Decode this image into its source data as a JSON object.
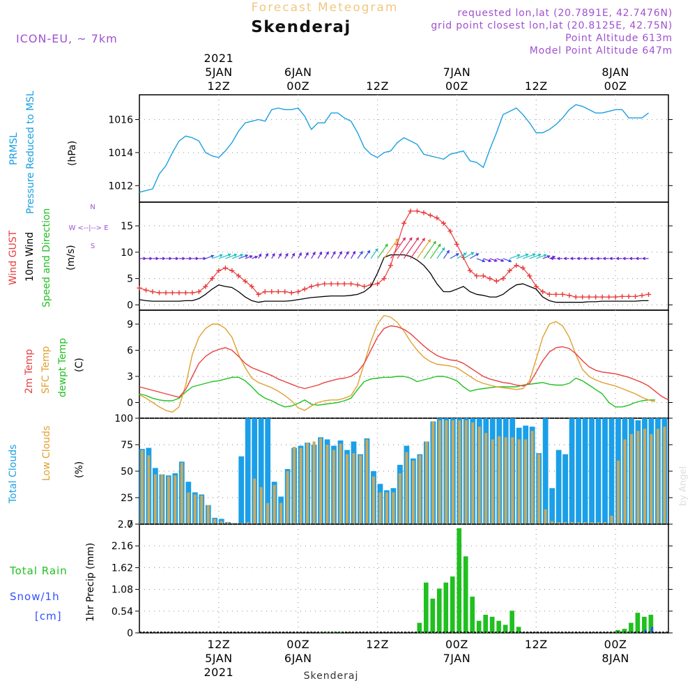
{
  "header": {
    "product": "Forecast Meteogram",
    "location": "Skenderaj",
    "model": "ICON-EU, ~ 7km",
    "requested": "requested lon,lat (20.7891E, 42.7476N)",
    "gridpoint": "grid point closest lon,lat (20.8125E, 42.75N)",
    "point_altitude": "Point Altitude 613m",
    "model_altitude": "Model Point Altitude 647m",
    "footer_location": "Skenderaj",
    "watermark": "by Angel"
  },
  "colors": {
    "pressure": "#1a9fe0",
    "gust": "#e83a3a",
    "wind": "#000000",
    "temp2m": "#e84040",
    "sfc": "#e0a030",
    "dewpt": "#20c020",
    "total_clouds": "#1a9fe8",
    "low_clouds": "#c8aa60",
    "rain": "#20c020",
    "snow": "#3050ff",
    "label_purple": "#a050d0",
    "title_orange": "#f0c880"
  },
  "time_axis": {
    "top_ticks": [
      {
        "t": 12,
        "lines": [
          "2021",
          "5JAN",
          "12Z"
        ]
      },
      {
        "t": 24,
        "lines": [
          "6JAN",
          "00Z"
        ]
      },
      {
        "t": 36,
        "lines": [
          "12Z"
        ]
      },
      {
        "t": 48,
        "lines": [
          "7JAN",
          "00Z"
        ]
      },
      {
        "t": 60,
        "lines": [
          "12Z"
        ]
      },
      {
        "t": 72,
        "lines": [
          "8JAN",
          "00Z"
        ]
      }
    ],
    "bottom_ticks": [
      {
        "t": 12,
        "lines": [
          "12Z",
          "5JAN",
          "2021"
        ]
      },
      {
        "t": 24,
        "lines": [
          "00Z",
          "6JAN"
        ]
      },
      {
        "t": 36,
        "lines": [
          "12Z"
        ]
      },
      {
        "t": 48,
        "lines": [
          "00Z",
          "7JAN"
        ]
      },
      {
        "t": 60,
        "lines": [
          "12Z"
        ]
      },
      {
        "t": 72,
        "lines": [
          "00Z",
          "8JAN"
        ]
      }
    ]
  },
  "panel_labels": {
    "pressure": {
      "name1": "PRMSL",
      "name2": "Pressure Reduced to MSL",
      "unit": "(hPa)"
    },
    "wind": {
      "gust": "Wind GUST",
      "wind10": "10m Wind",
      "dir": "Speed and Direction",
      "unit": "(m/s)",
      "compass": [
        "N",
        "W <--|--> E",
        "S"
      ]
    },
    "temp": {
      "t2m": "2m Temp",
      "sfc": "SFC Temp",
      "dew": "dewpt Temp",
      "unit": "(C)"
    },
    "clouds": {
      "total": "Total Clouds",
      "low": "Low Clouds",
      "unit": "(%)"
    },
    "precip": {
      "rain": "Total  Rain",
      "snow": "Snow/1h",
      "snow_unit": "[cm]",
      "axis": "1hr Precip (mm)"
    }
  },
  "chart_data": [
    {
      "type": "line",
      "panel": "pressure",
      "x_start_hour": 0,
      "x_step_hours": 1,
      "ylim": [
        1011,
        1017.5
      ],
      "yticks": [
        1012,
        1014,
        1016
      ],
      "series": [
        {
          "name": "PRMSL",
          "values": [
            1011.6,
            1011.7,
            1011.8,
            1012.7,
            1013.2,
            1014.0,
            1014.7,
            1015.0,
            1014.9,
            1014.7,
            1014.0,
            1013.8,
            1013.7,
            1014.1,
            1014.6,
            1015.3,
            1015.8,
            1015.9,
            1016.0,
            1015.9,
            1016.6,
            1016.7,
            1016.6,
            1016.6,
            1016.7,
            1016.2,
            1015.4,
            1015.8,
            1015.8,
            1016.4,
            1016.4,
            1016.1,
            1015.9,
            1015.2,
            1014.3,
            1013.9,
            1013.7,
            1014.0,
            1014.1,
            1014.6,
            1014.9,
            1014.7,
            1014.5,
            1013.9,
            1013.8,
            1013.7,
            1013.6,
            1013.9,
            1014.0,
            1014.1,
            1013.5,
            1013.4,
            1013.1,
            1014.2,
            1015.2,
            1016.3,
            1016.5,
            1016.7,
            1016.3,
            1015.8,
            1015.2,
            1015.2,
            1015.4,
            1015.7,
            1016.1,
            1016.6,
            1016.9,
            1016.8,
            1016.6,
            1016.4,
            1016.4,
            1016.5,
            1016.6,
            1016.6,
            1016.1,
            1016.1,
            1016.1,
            1016.4
          ]
        }
      ]
    },
    {
      "type": "line",
      "panel": "wind",
      "x_start_hour": 0,
      "x_step_hours": 1,
      "ylim": [
        -1,
        19.5
      ],
      "yticks": [
        0,
        5,
        10,
        15
      ],
      "series": [
        {
          "name": "Wind GUST",
          "values": [
            3.2,
            2.8,
            2.5,
            2.3,
            2.3,
            2.3,
            2.3,
            2.3,
            2.3,
            2.5,
            3.5,
            5.0,
            6.5,
            7.0,
            6.5,
            5.5,
            4.5,
            3.5,
            2.0,
            2.5,
            2.5,
            2.5,
            2.5,
            2.3,
            2.5,
            3.0,
            3.5,
            3.8,
            4.0,
            4.0,
            4.0,
            4.0,
            4.0,
            3.8,
            3.5,
            3.8,
            4.0,
            5.0,
            7.5,
            11.5,
            15.5,
            17.8,
            17.8,
            17.5,
            17.0,
            16.5,
            15.5,
            14.0,
            11.5,
            9.0,
            6.5,
            5.5,
            5.5,
            5.0,
            4.5,
            5.0,
            6.5,
            7.5,
            7.0,
            5.5,
            3.5,
            2.5,
            2.0,
            2.0,
            2.0,
            1.8,
            1.5,
            1.5,
            1.5,
            1.5,
            1.5,
            1.5,
            1.5,
            1.6,
            1.6,
            1.6,
            1.8,
            2.0
          ]
        },
        {
          "name": "10m Wind",
          "values": [
            1.0,
            0.8,
            0.7,
            0.7,
            0.7,
            0.7,
            0.7,
            0.8,
            0.8,
            1.2,
            2.0,
            3.0,
            3.8,
            3.5,
            3.3,
            2.5,
            1.5,
            0.8,
            0.5,
            0.7,
            0.7,
            0.7,
            0.7,
            0.8,
            1.0,
            1.2,
            1.4,
            1.5,
            1.6,
            1.7,
            1.7,
            1.7,
            1.8,
            2.0,
            2.5,
            3.5,
            6.0,
            9.0,
            9.5,
            9.5,
            9.5,
            9.2,
            8.5,
            7.5,
            6.0,
            4.0,
            2.5,
            2.5,
            3.0,
            3.5,
            2.5,
            2.0,
            1.8,
            1.5,
            1.5,
            2.0,
            3.0,
            3.8,
            4.0,
            3.5,
            3.0,
            1.5,
            0.8,
            0.5,
            0.5,
            0.5,
            0.5,
            0.5,
            0.6,
            0.6,
            0.7,
            0.7,
            0.7,
            0.7,
            0.7,
            0.7,
            0.8,
            0.8
          ]
        }
      ]
    },
    {
      "type": "line",
      "panel": "temperature",
      "x_start_hour": 0,
      "x_step_hours": 1,
      "ylim": [
        -1.8,
        10.6
      ],
      "yticks": [
        0,
        3,
        6,
        9
      ],
      "series": [
        {
          "name": "2m Temp",
          "values": [
            1.8,
            1.6,
            1.4,
            1.2,
            1.0,
            0.8,
            0.6,
            1.5,
            3.0,
            4.5,
            5.3,
            5.8,
            6.1,
            6.3,
            6.0,
            5.3,
            4.5,
            4.0,
            3.7,
            3.4,
            3.1,
            2.7,
            2.4,
            2.1,
            1.8,
            1.6,
            1.8,
            2.0,
            2.3,
            2.5,
            2.7,
            2.8,
            3.0,
            3.5,
            4.5,
            6.0,
            7.5,
            8.5,
            8.8,
            8.7,
            8.4,
            7.9,
            7.2,
            6.5,
            5.9,
            5.4,
            5.1,
            4.9,
            4.8,
            4.5,
            4.0,
            3.5,
            3.0,
            2.7,
            2.5,
            2.3,
            2.2,
            2.0,
            1.9,
            2.2,
            3.5,
            4.8,
            5.8,
            6.3,
            6.4,
            6.2,
            5.6,
            4.8,
            4.1,
            3.7,
            3.5,
            3.4,
            3.3,
            3.1,
            2.9,
            2.6,
            2.3,
            1.9,
            1.3,
            0.7,
            0.3
          ]
        },
        {
          "name": "SFC Temp",
          "values": [
            0.9,
            0.5,
            0.0,
            -0.5,
            -0.9,
            -1.1,
            -0.5,
            2.0,
            5.5,
            7.5,
            8.5,
            9.0,
            9.0,
            8.5,
            7.5,
            5.5,
            4.0,
            2.8,
            2.3,
            2.0,
            1.7,
            1.3,
            0.8,
            0.2,
            -0.6,
            -0.9,
            -0.4,
            0.0,
            0.2,
            0.3,
            0.3,
            0.5,
            0.8,
            2.0,
            4.5,
            7.0,
            9.0,
            10.0,
            9.8,
            9.2,
            8.2,
            7.0,
            6.0,
            5.2,
            4.7,
            4.4,
            4.3,
            4.2,
            4.0,
            3.5,
            3.0,
            2.5,
            2.2,
            2.0,
            1.8,
            1.7,
            1.6,
            1.5,
            1.6,
            2.5,
            5.0,
            7.5,
            9.0,
            9.3,
            8.8,
            7.5,
            5.5,
            3.8,
            3.0,
            2.6,
            2.3,
            2.1,
            1.9,
            1.6,
            1.3,
            1.0,
            0.6,
            0.3,
            0.1
          ]
        },
        {
          "name": "dewpt Temp",
          "values": [
            1.0,
            0.8,
            0.5,
            0.3,
            0.2,
            0.2,
            0.5,
            1.2,
            1.8,
            2.0,
            2.2,
            2.4,
            2.5,
            2.7,
            2.9,
            2.9,
            2.5,
            1.8,
            1.0,
            0.5,
            0.2,
            -0.2,
            -0.5,
            -0.4,
            -0.1,
            0.3,
            -0.2,
            -0.3,
            -0.2,
            -0.1,
            0.0,
            0.2,
            0.5,
            1.5,
            2.4,
            2.7,
            2.8,
            2.9,
            2.9,
            3.0,
            3.0,
            2.8,
            2.4,
            2.6,
            2.8,
            3.0,
            3.0,
            2.8,
            2.5,
            1.8,
            1.3,
            1.5,
            1.6,
            1.7,
            1.8,
            1.8,
            1.8,
            1.8,
            2.0,
            2.1,
            2.2,
            2.3,
            2.1,
            2.0,
            2.0,
            2.2,
            2.8,
            2.5,
            2.0,
            1.5,
            1.0,
            0.0,
            -0.5,
            -0.5,
            -0.3,
            0.0,
            0.2,
            0.3,
            0.3
          ]
        }
      ]
    },
    {
      "type": "bar",
      "panel": "clouds",
      "x_start_hour": 0,
      "x_step_hours": 1,
      "ylim": [
        0,
        100
      ],
      "yticks": [
        0,
        25,
        50,
        75,
        100
      ],
      "series": [
        {
          "name": "Total Clouds",
          "values": [
            71,
            72,
            53,
            47,
            46,
            48,
            59,
            40,
            30,
            28,
            18,
            6,
            5,
            2,
            1,
            64,
            100,
            100,
            100,
            100,
            40,
            26,
            52,
            72,
            74,
            77,
            75,
            82,
            80,
            74,
            79,
            70,
            78,
            66,
            81,
            50,
            38,
            32,
            34,
            56,
            74,
            62,
            66,
            78,
            97,
            100,
            100,
            100,
            100,
            100,
            100,
            100,
            100,
            100,
            100,
            100,
            100,
            91,
            93,
            92,
            67,
            100,
            34,
            70,
            66,
            100,
            100,
            100,
            100,
            100,
            100,
            100,
            100,
            100,
            100,
            98,
            100,
            100,
            100,
            100,
            100
          ]
        },
        {
          "name": "Low Clouds",
          "values": [
            70,
            65,
            47,
            47,
            45,
            46,
            58,
            30,
            28,
            27,
            18,
            5,
            3,
            2,
            1,
            1,
            2,
            43,
            35,
            20,
            37,
            20,
            50,
            73,
            72,
            77,
            78,
            81,
            75,
            70,
            76,
            66,
            67,
            65,
            80,
            45,
            30,
            30,
            30,
            48,
            68,
            60,
            65,
            78,
            97,
            98,
            98,
            98,
            98,
            98,
            96,
            92,
            86,
            80,
            83,
            82,
            82,
            80,
            80,
            88,
            66,
            14,
            3,
            2,
            2,
            2,
            2,
            2,
            2,
            2,
            2,
            8,
            60,
            80,
            85,
            88,
            90,
            85,
            90,
            92,
            86
          ]
        }
      ]
    },
    {
      "type": "bar",
      "panel": "precipitation",
      "x_start_hour": 0,
      "x_step_hours": 1,
      "ylim": [
        0,
        2.7
      ],
      "yticks": [
        0,
        0.54,
        1.08,
        1.62,
        2.16,
        2.7
      ],
      "series": [
        {
          "name": "Total Rain",
          "values": [
            0,
            0,
            0,
            0,
            0,
            0,
            0,
            0,
            0,
            0,
            0,
            0,
            0,
            0,
            0,
            0,
            0,
            0,
            0,
            0,
            0,
            0,
            0,
            0,
            0,
            0,
            0,
            0.02,
            0.02,
            0.02,
            0.02,
            0,
            0,
            0,
            0,
            0,
            0,
            0,
            0,
            0,
            0,
            0,
            0.25,
            1.25,
            0.85,
            1.1,
            1.25,
            1.4,
            2.6,
            1.9,
            0.9,
            0.3,
            0.45,
            0.4,
            0.3,
            0.2,
            0.55,
            0.15,
            0,
            0,
            0,
            0,
            0,
            0,
            0,
            0,
            0,
            0,
            0,
            0,
            0,
            0,
            0.07,
            0.1,
            0.25,
            0.5,
            0.4,
            0.45
          ]
        },
        {
          "name": "Snow/1h",
          "values": [
            0,
            0,
            0,
            0,
            0,
            0,
            0,
            0,
            0,
            0,
            0,
            0,
            0,
            0,
            0,
            0,
            0,
            0,
            0,
            0,
            0,
            0,
            0,
            0,
            0,
            0,
            0,
            0,
            0,
            0,
            0,
            0,
            0,
            0,
            0,
            0,
            0,
            0,
            0,
            0,
            0,
            0,
            0,
            0,
            0,
            0,
            0,
            0,
            0,
            0,
            0,
            0,
            0,
            0,
            0,
            0,
            0,
            0,
            0,
            0,
            0,
            0,
            0,
            0,
            0,
            0,
            0,
            0,
            0,
            0,
            0,
            0,
            0,
            0,
            0,
            0,
            0.08,
            0.15
          ]
        }
      ]
    }
  ]
}
